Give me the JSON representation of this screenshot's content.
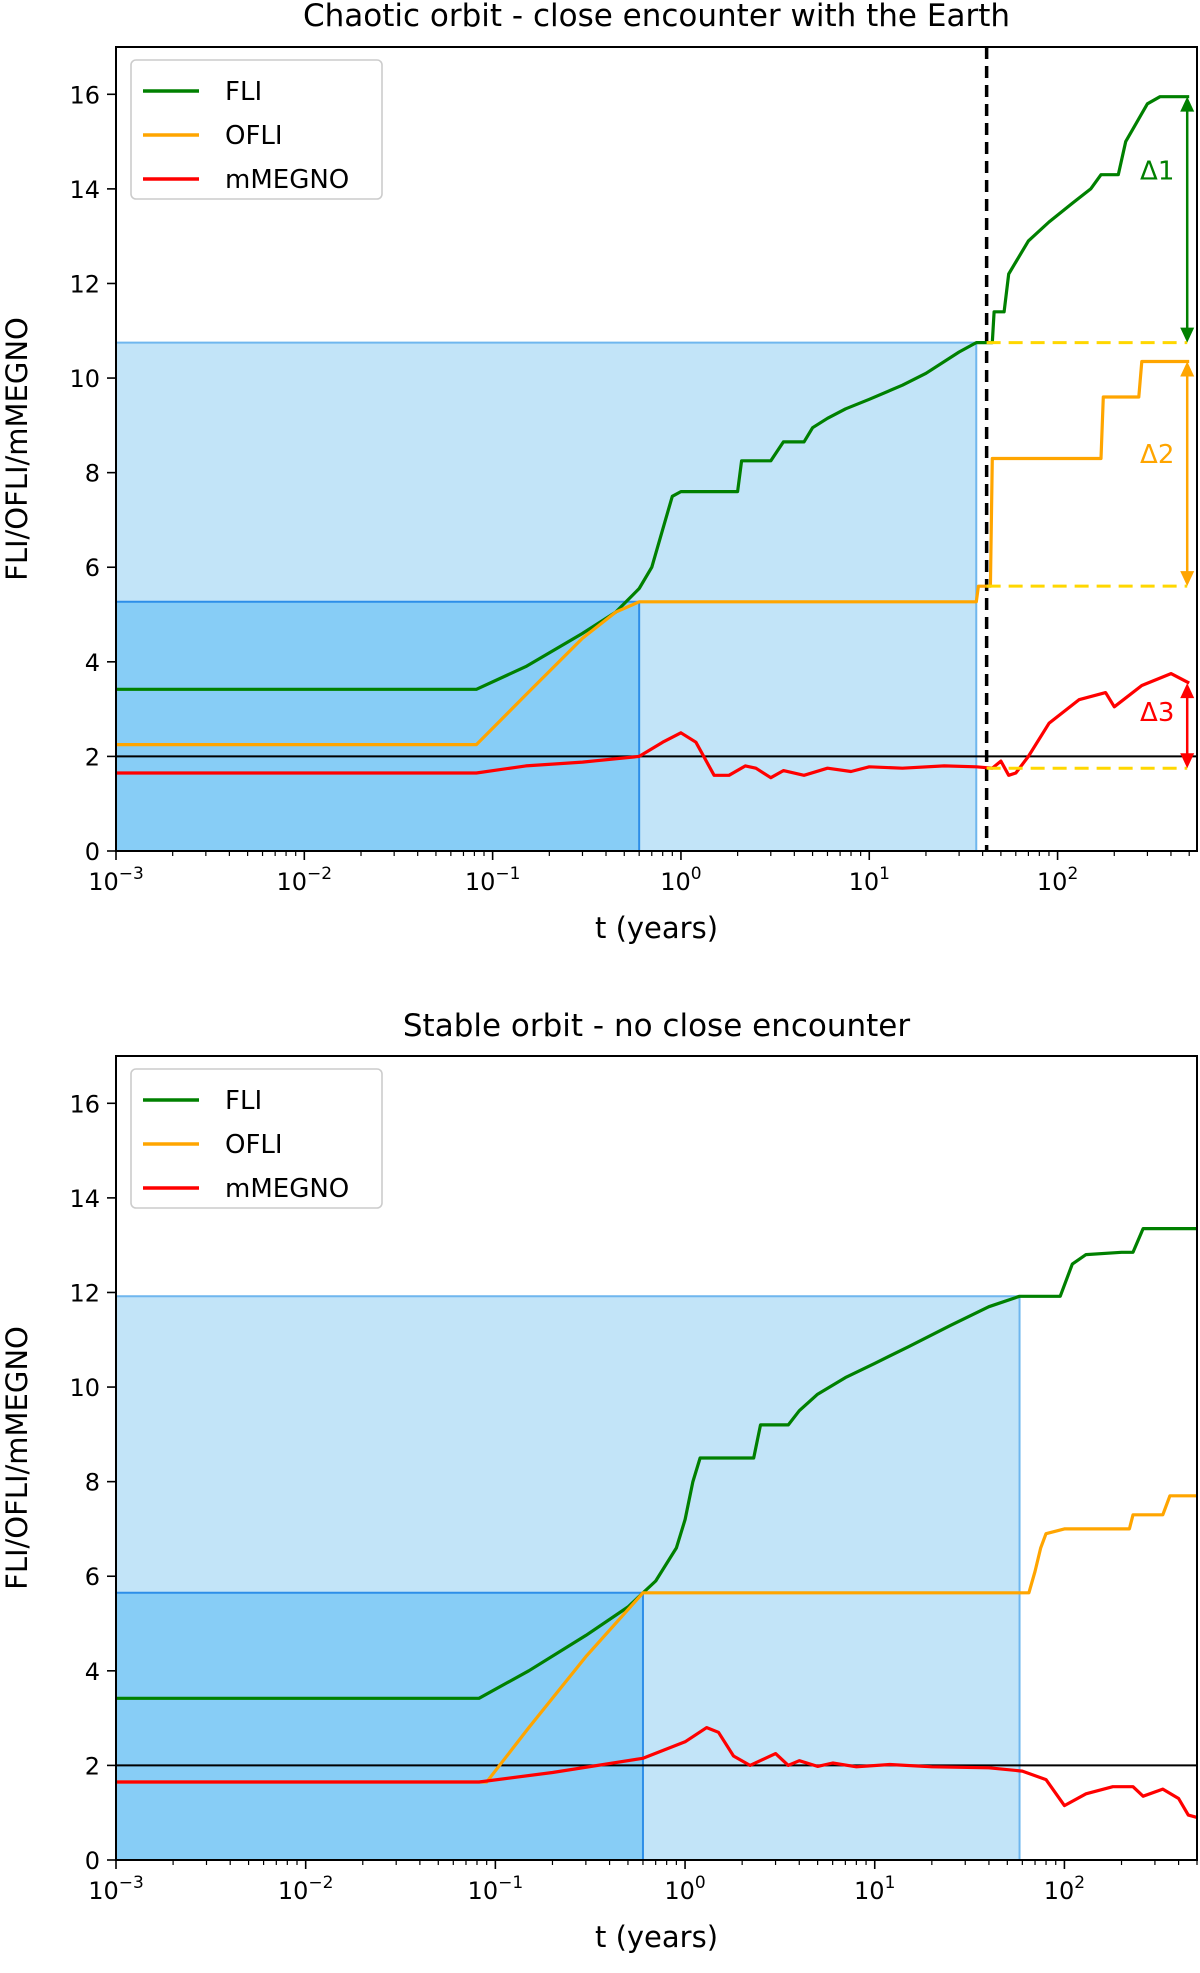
{
  "colors": {
    "fli": "#008000",
    "ofli": "#ffa500",
    "mmegno": "#ff0000",
    "delta_dash": "#ffd700",
    "region_light": "#c2e4f8",
    "region_dark": "#87cdf6",
    "region_light_edge": "#6fb6ee",
    "region_dark_edge": "#2d8ee8",
    "reference_line": "#000000",
    "encounter_line": "#000000"
  },
  "chart_data": [
    {
      "type": "line",
      "title": "Chaotic orbit - close encounter with the Earth",
      "xlabel": "t (years)",
      "ylabel": "FLI/OFLI/mMEGNO",
      "xscale": "log",
      "xlim": [
        0.001,
        550
      ],
      "ylim": [
        0,
        17
      ],
      "xticks": [
        {
          "value": 0.001,
          "base": "10",
          "exp": "−3"
        },
        {
          "value": 0.01,
          "base": "10",
          "exp": "−2"
        },
        {
          "value": 0.1,
          "base": "10",
          "exp": "−1"
        },
        {
          "value": 1,
          "base": "10",
          "exp": "0"
        },
        {
          "value": 10,
          "base": "10",
          "exp": "1"
        },
        {
          "value": 100,
          "base": "10",
          "exp": "2"
        }
      ],
      "yticks": [
        "0",
        "2",
        "4",
        "6",
        "8",
        "10",
        "12",
        "14",
        "16"
      ],
      "legend": {
        "position": "upper-left",
        "entries": [
          "FLI",
          "OFLI",
          "mMEGNO"
        ]
      },
      "reference_line": {
        "y": 2
      },
      "close_encounter_line": {
        "x": 42
      },
      "shaded_regions": [
        {
          "kind": "light",
          "x_end": 37,
          "y_top": 10.75
        },
        {
          "kind": "dark",
          "x_end": 0.6,
          "y_top": 5.27
        }
      ],
      "series": [
        {
          "name": "FLI",
          "points": [
            [
              0.001,
              3.42
            ],
            [
              0.082,
              3.42
            ],
            [
              0.15,
              3.9
            ],
            [
              0.3,
              4.6
            ],
            [
              0.45,
              5.05
            ],
            [
              0.6,
              5.55
            ],
            [
              0.7,
              6.0
            ],
            [
              0.8,
              6.8
            ],
            [
              0.9,
              7.5
            ],
            [
              1.0,
              7.6
            ],
            [
              1.5,
              7.6
            ],
            [
              2.0,
              7.6
            ],
            [
              2.1,
              8.25
            ],
            [
              3.0,
              8.25
            ],
            [
              3.5,
              8.65
            ],
            [
              4.5,
              8.65
            ],
            [
              5.0,
              8.95
            ],
            [
              6.0,
              9.15
            ],
            [
              7.5,
              9.35
            ],
            [
              10,
              9.55
            ],
            [
              15,
              9.85
            ],
            [
              20,
              10.1
            ],
            [
              30,
              10.55
            ],
            [
              37,
              10.75
            ],
            [
              45,
              10.75
            ],
            [
              46,
              11.4
            ],
            [
              52,
              11.4
            ],
            [
              55,
              12.2
            ],
            [
              70,
              12.9
            ],
            [
              90,
              13.3
            ],
            [
              120,
              13.7
            ],
            [
              150,
              14.0
            ],
            [
              170,
              14.3
            ],
            [
              210,
              14.3
            ],
            [
              230,
              15.0
            ],
            [
              300,
              15.8
            ],
            [
              350,
              15.95
            ],
            [
              500,
              15.95
            ]
          ]
        },
        {
          "name": "OFLI",
          "points": [
            [
              0.001,
              2.25
            ],
            [
              0.082,
              2.25
            ],
            [
              0.15,
              3.3
            ],
            [
              0.3,
              4.5
            ],
            [
              0.45,
              5.05
            ],
            [
              0.6,
              5.27
            ],
            [
              1.0,
              5.27
            ],
            [
              37,
              5.27
            ],
            [
              38,
              5.6
            ],
            [
              44,
              5.6
            ],
            [
              45,
              8.3
            ],
            [
              170,
              8.3
            ],
            [
              175,
              9.6
            ],
            [
              270,
              9.6
            ],
            [
              280,
              10.35
            ],
            [
              500,
              10.35
            ]
          ]
        },
        {
          "name": "mMEGNO",
          "points": [
            [
              0.001,
              1.65
            ],
            [
              0.082,
              1.65
            ],
            [
              0.15,
              1.8
            ],
            [
              0.3,
              1.88
            ],
            [
              0.6,
              2.0
            ],
            [
              0.8,
              2.3
            ],
            [
              1.0,
              2.5
            ],
            [
              1.2,
              2.3
            ],
            [
              1.5,
              1.6
            ],
            [
              1.8,
              1.6
            ],
            [
              2.2,
              1.8
            ],
            [
              2.5,
              1.75
            ],
            [
              3.0,
              1.55
            ],
            [
              3.5,
              1.7
            ],
            [
              4.5,
              1.6
            ],
            [
              6,
              1.75
            ],
            [
              8,
              1.68
            ],
            [
              10,
              1.78
            ],
            [
              15,
              1.75
            ],
            [
              25,
              1.8
            ],
            [
              37,
              1.78
            ],
            [
              45,
              1.75
            ],
            [
              50,
              1.9
            ],
            [
              55,
              1.6
            ],
            [
              60,
              1.65
            ],
            [
              70,
              2.0
            ],
            [
              90,
              2.7
            ],
            [
              130,
              3.2
            ],
            [
              180,
              3.35
            ],
            [
              200,
              3.05
            ],
            [
              280,
              3.5
            ],
            [
              400,
              3.75
            ],
            [
              500,
              3.55
            ]
          ]
        }
      ],
      "annotations": [
        {
          "label": "Δ1",
          "series": "FLI",
          "x": 500,
          "y_from": 10.75,
          "y_to": 15.95,
          "label_y": 14.2
        },
        {
          "label": "Δ2",
          "series": "OFLI",
          "x": 500,
          "y_from": 5.6,
          "y_to": 10.35,
          "label_y": 8.2
        },
        {
          "label": "Δ3",
          "series": "mMEGNO",
          "x": 500,
          "y_from": 1.75,
          "y_to": 3.55,
          "label_y": 2.75
        }
      ]
    },
    {
      "type": "line",
      "title": "Stable orbit - no close encounter",
      "xlabel": "t (years)",
      "ylabel": "FLI/OFLI/mMEGNO",
      "xscale": "log",
      "xlim": [
        0.001,
        500
      ],
      "ylim": [
        0,
        17
      ],
      "xticks": [
        {
          "value": 0.001,
          "base": "10",
          "exp": "−3"
        },
        {
          "value": 0.01,
          "base": "10",
          "exp": "−2"
        },
        {
          "value": 0.1,
          "base": "10",
          "exp": "−1"
        },
        {
          "value": 1,
          "base": "10",
          "exp": "0"
        },
        {
          "value": 10,
          "base": "10",
          "exp": "1"
        },
        {
          "value": 100,
          "base": "10",
          "exp": "2"
        }
      ],
      "yticks": [
        "0",
        "2",
        "4",
        "6",
        "8",
        "10",
        "12",
        "14",
        "16"
      ],
      "legend": {
        "position": "upper-left",
        "entries": [
          "FLI",
          "OFLI",
          "mMEGNO"
        ]
      },
      "reference_line": {
        "y": 2
      },
      "close_encounter_line": null,
      "shaded_regions": [
        {
          "kind": "light",
          "x_end": 58,
          "y_top": 11.92
        },
        {
          "kind": "dark",
          "x_end": 0.6,
          "y_top": 5.65
        }
      ],
      "series": [
        {
          "name": "FLI",
          "points": [
            [
              0.001,
              3.42
            ],
            [
              0.082,
              3.42
            ],
            [
              0.15,
              4.0
            ],
            [
              0.3,
              4.75
            ],
            [
              0.5,
              5.35
            ],
            [
              0.7,
              5.9
            ],
            [
              0.9,
              6.6
            ],
            [
              1.0,
              7.2
            ],
            [
              1.1,
              8.0
            ],
            [
              1.2,
              8.5
            ],
            [
              2.0,
              8.5
            ],
            [
              2.3,
              8.5
            ],
            [
              2.5,
              9.2
            ],
            [
              3.5,
              9.2
            ],
            [
              4.0,
              9.5
            ],
            [
              5.0,
              9.85
            ],
            [
              7.0,
              10.2
            ],
            [
              10,
              10.5
            ],
            [
              15,
              10.85
            ],
            [
              25,
              11.3
            ],
            [
              40,
              11.7
            ],
            [
              58,
              11.92
            ],
            [
              95,
              11.92
            ],
            [
              110,
              12.6
            ],
            [
              130,
              12.8
            ],
            [
              200,
              12.85
            ],
            [
              230,
              12.85
            ],
            [
              260,
              13.35
            ],
            [
              500,
              13.35
            ]
          ]
        },
        {
          "name": "OFLI",
          "points": [
            [
              0.001,
              1.65
            ],
            [
              0.09,
              1.65
            ],
            [
              0.15,
              2.8
            ],
            [
              0.3,
              4.3
            ],
            [
              0.6,
              5.65
            ],
            [
              1.0,
              5.65
            ],
            [
              60,
              5.65
            ],
            [
              65,
              5.65
            ],
            [
              70,
              6.1
            ],
            [
              75,
              6.6
            ],
            [
              80,
              6.9
            ],
            [
              100,
              7.0
            ],
            [
              220,
              7.0
            ],
            [
              230,
              7.3
            ],
            [
              330,
              7.3
            ],
            [
              360,
              7.7
            ],
            [
              500,
              7.7
            ]
          ]
        },
        {
          "name": "mMEGNO",
          "points": [
            [
              0.001,
              1.65
            ],
            [
              0.082,
              1.65
            ],
            [
              0.2,
              1.85
            ],
            [
              0.6,
              2.15
            ],
            [
              1.0,
              2.5
            ],
            [
              1.3,
              2.8
            ],
            [
              1.5,
              2.7
            ],
            [
              1.8,
              2.2
            ],
            [
              2.2,
              2.0
            ],
            [
              3.0,
              2.25
            ],
            [
              3.5,
              2.0
            ],
            [
              4.0,
              2.1
            ],
            [
              5.0,
              1.98
            ],
            [
              6.0,
              2.05
            ],
            [
              8,
              1.97
            ],
            [
              12,
              2.02
            ],
            [
              20,
              1.97
            ],
            [
              40,
              1.95
            ],
            [
              60,
              1.88
            ],
            [
              80,
              1.7
            ],
            [
              100,
              1.15
            ],
            [
              130,
              1.4
            ],
            [
              180,
              1.55
            ],
            [
              230,
              1.55
            ],
            [
              260,
              1.35
            ],
            [
              330,
              1.5
            ],
            [
              400,
              1.3
            ],
            [
              450,
              0.95
            ],
            [
              500,
              0.9
            ]
          ]
        }
      ],
      "annotations": []
    }
  ]
}
